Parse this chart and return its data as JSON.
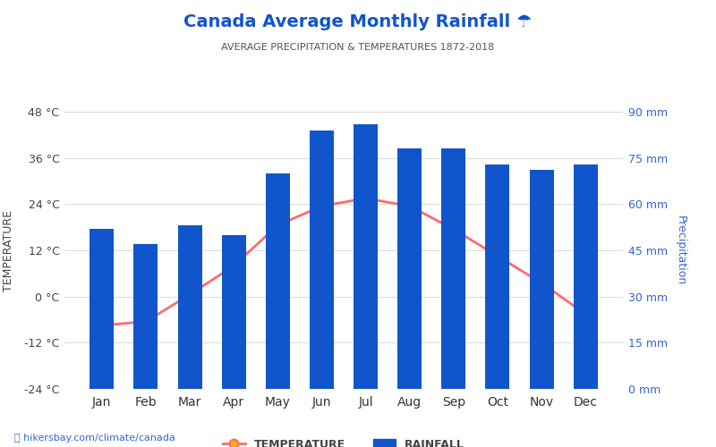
{
  "months": [
    "Jan",
    "Feb",
    "Mar",
    "Apr",
    "May",
    "Jun",
    "Jul",
    "Aug",
    "Sep",
    "Oct",
    "Nov",
    "Dec"
  ],
  "rainfall_mm": [
    52,
    47,
    53,
    50,
    70,
    84,
    86,
    78,
    78,
    73,
    71,
    73
  ],
  "temperature_c": [
    -7.5,
    -6.5,
    0.5,
    8.0,
    18.5,
    23.5,
    25.5,
    23.5,
    17.5,
    10.5,
    3.5,
    -4.5
  ],
  "bar_color": "#1155CC",
  "line_color": "#FF6B6B",
  "marker_color_outer": "#FF6B6B",
  "marker_color_inner": "#FFB300",
  "title": "Canada Average Monthly Rainfall ☂",
  "subtitle": "AVERAGE PRECIPITATION & TEMPERATURES 1872-2018",
  "ylabel_left": "TEMPERATURE",
  "ylabel_right": "Precipitation",
  "temp_ylim": [
    -24,
    48
  ],
  "temp_yticks": [
    -24,
    -12,
    0,
    12,
    24,
    36,
    48
  ],
  "precip_ylim": [
    0,
    90
  ],
  "precip_yticks": [
    0,
    15,
    30,
    45,
    60,
    75,
    90
  ],
  "bg_color": "#ffffff",
  "axis_color": "#3366CC",
  "title_color": "#1155CC",
  "subtitle_color": "#555555",
  "grid_color": "#dddddd",
  "watermark": "hikersbay.com/climate/canada",
  "legend_temp": "TEMPERATURE",
  "legend_rain": "RAINFALL",
  "bar_width": 0.55
}
